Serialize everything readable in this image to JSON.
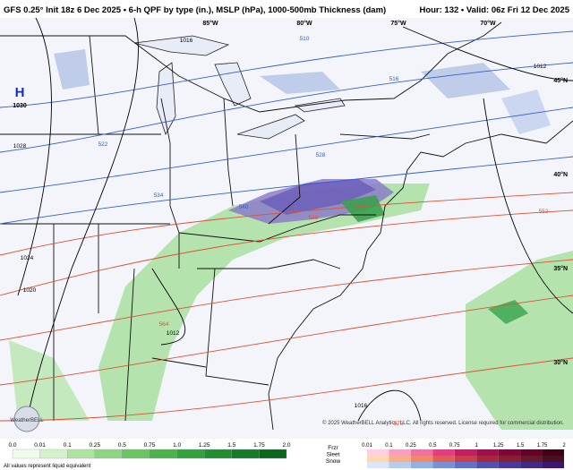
{
  "header": {
    "title": "GFS 0.25° Init 18z 6 Dec 2025 • 6-h QPF by type (in.), MSLP (hPa), 1000-500mb Thickness (dam)",
    "valid": "Hour: 132 • Valid: 06z Fri 12 Dec 2025"
  },
  "map": {
    "longitudes": [
      "85°W",
      "80°W",
      "75°W",
      "70°W"
    ],
    "latitudes": [
      "45°N",
      "40°N",
      "35°N",
      "30°N"
    ],
    "high": {
      "symbol": "H",
      "pressure": "1030"
    },
    "isobar_labels": [
      "1016",
      "1012",
      "1028",
      "1024",
      "1020",
      "1012",
      "1016"
    ],
    "thickness_labels": [
      "510",
      "516",
      "522",
      "528",
      "534",
      "540",
      "546",
      "552",
      "564",
      "570"
    ],
    "copyright": "© 2025 WeatherBELL Analytics, LLC. All rights reserved. License required for commercial distribution."
  },
  "legend": {
    "rain_ticks": [
      "0.0",
      "0.01",
      "0.1",
      "0.25",
      "0.5",
      "0.75",
      "1.0",
      "1.25",
      "1.5",
      "1.75",
      "2.0"
    ],
    "note": "All values represent liquid equivalent",
    "types": [
      "Frzr",
      "Sleet",
      "Snow"
    ],
    "mix_ticks": [
      "0.01",
      "0.1",
      "0.25",
      "0.5",
      "0.75",
      "1",
      "1.25",
      "1.5",
      "1.75",
      "2"
    ]
  },
  "logo": "WeatherBELL"
}
